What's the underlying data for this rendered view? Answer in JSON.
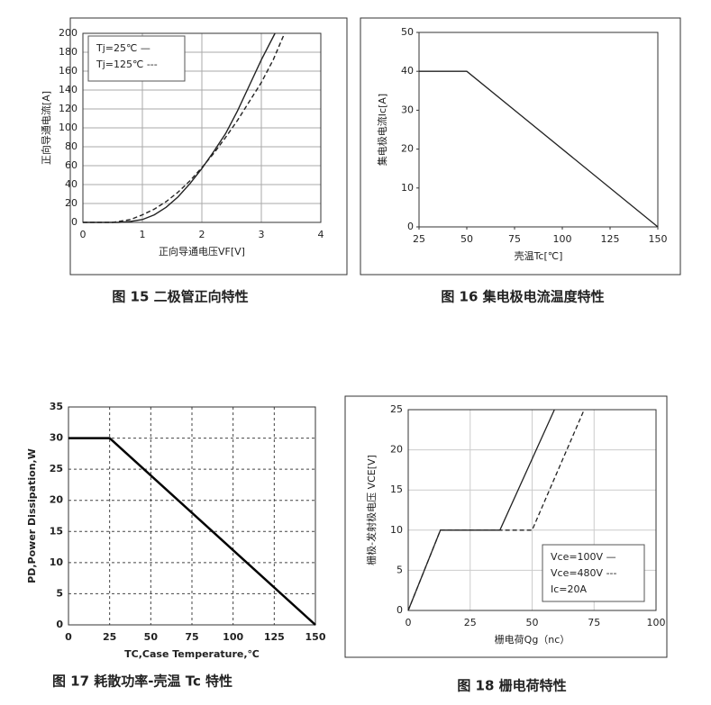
{
  "chart_data": [
    {
      "type": "line",
      "caption": "图 15 二极管正向特性",
      "xlabel": "正向导通电压VF[V]",
      "ylabel": "正向导通电流[A]",
      "xlim": [
        0,
        4
      ],
      "xticks": [
        0,
        1,
        2,
        3,
        4
      ],
      "ylim": [
        0,
        200
      ],
      "yticks": [
        0,
        20,
        40,
        60,
        80,
        100,
        120,
        140,
        160,
        180,
        200
      ],
      "grid": true,
      "series": [
        {
          "name": "Tj=25℃ —",
          "color": "#222222",
          "dash": false,
          "x": [
            0,
            0.6,
            0.8,
            1,
            1.2,
            1.4,
            1.6,
            1.8,
            2,
            2.2,
            2.4,
            2.6,
            2.8,
            3,
            3.23
          ],
          "values": [
            0,
            0,
            1,
            3,
            8,
            16,
            27,
            41,
            57,
            75,
            94,
            118,
            145,
            172,
            200
          ]
        },
        {
          "name": "Tj=125℃ ---",
          "color": "#222222",
          "dash": true,
          "x": [
            0,
            0.5,
            0.8,
            1,
            1.2,
            1.4,
            1.6,
            1.8,
            2,
            2.2,
            2.4,
            2.6,
            2.8,
            3,
            3.2,
            3.39
          ],
          "values": [
            0,
            0,
            3,
            8,
            14,
            22,
            32,
            44,
            58,
            73,
            90,
            108,
            128,
            148,
            172,
            200
          ]
        }
      ]
    },
    {
      "type": "line",
      "caption": "图 16 集电极电流温度特性",
      "xlabel": "壳温Tc[℃]",
      "ylabel": "集电极电流Ic[A]",
      "xlim": [
        25,
        150
      ],
      "xticks": [
        25,
        50,
        75,
        100,
        125,
        150
      ],
      "ylim": [
        0,
        50
      ],
      "yticks": [
        0,
        10,
        20,
        30,
        40,
        50
      ],
      "grid": false,
      "color": "#222222",
      "x": [
        25,
        50,
        150
      ],
      "values": [
        40,
        40,
        0
      ]
    },
    {
      "type": "line",
      "caption": "图 17 耗散功率-壳温 Tc 特性",
      "xlabel": "TC,Case Temperature,℃",
      "ylabel": "PD,Power Dissipation,W",
      "xlim": [
        0,
        150
      ],
      "xticks": [
        0,
        25,
        50,
        75,
        100,
        125,
        150
      ],
      "ylim": [
        0,
        35
      ],
      "yticks": [
        0,
        5,
        10,
        15,
        20,
        25,
        30,
        35
      ],
      "grid": true,
      "color": "#000000",
      "x": [
        0,
        25,
        150
      ],
      "values": [
        30,
        30,
        0
      ]
    },
    {
      "type": "line",
      "caption": "图 18 栅电荷特性",
      "xlabel": "栅电荷Qg（nc）",
      "ylabel": "栅极-发射极电压 VCE[V]",
      "xlim": [
        0,
        100
      ],
      "xticks": [
        0,
        25,
        50,
        75,
        100
      ],
      "ylim": [
        0,
        25
      ],
      "yticks": [
        0,
        5,
        10,
        15,
        20,
        25
      ],
      "grid": true,
      "legend_note": "Ic=20A",
      "series": [
        {
          "name": "Vce=100V —",
          "color": "#222222",
          "dash": false,
          "x": [
            0,
            13,
            37,
            59
          ],
          "values": [
            0,
            10,
            10,
            25
          ]
        },
        {
          "name": "Vce=480V ---",
          "color": "#222222",
          "dash": true,
          "x": [
            0,
            13,
            50,
            71
          ],
          "values": [
            0,
            10,
            10,
            25
          ]
        }
      ]
    }
  ]
}
